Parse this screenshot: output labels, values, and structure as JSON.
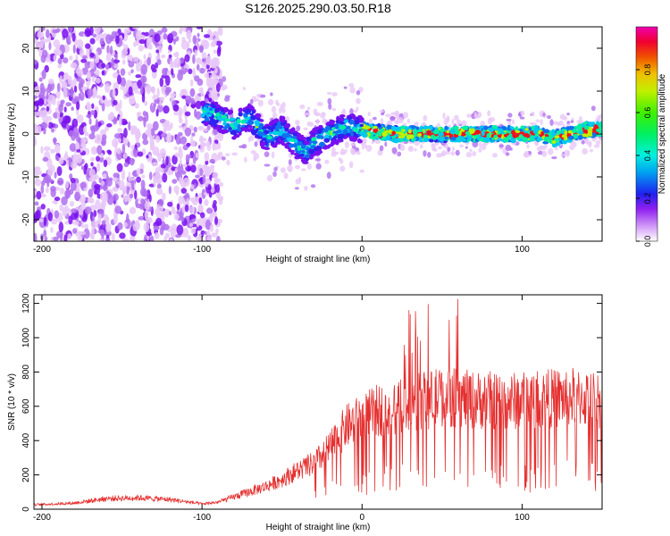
{
  "figure_title": "S126.2025.290.03.50.R18",
  "colors": {
    "snr_line": "#e53030",
    "colormap": [
      "#e8c8f8",
      "#b070f0",
      "#7a10f0",
      "#3020f0",
      "#1070f0",
      "#00c8f0",
      "#00f0a0",
      "#20f020",
      "#c0f000",
      "#f0c000",
      "#f06000",
      "#f01020",
      "#f000c0"
    ]
  },
  "chart_data": [
    {
      "type": "heatmap",
      "title": "",
      "xlabel": "Height of straight line (km)",
      "ylabel": "Frequency (Hz)",
      "xlim": [
        -205,
        150
      ],
      "ylim": [
        -25,
        25
      ],
      "xticks": [
        -200,
        -100,
        0,
        100
      ],
      "yticks": [
        -20,
        -10,
        0,
        10,
        20
      ],
      "colorbar": {
        "label": "Normalized spectral amplitude",
        "range": [
          0,
          1
        ],
        "ticks": [
          0.0,
          0.2,
          0.4,
          0.6,
          0.8
        ]
      },
      "ridge": {
        "description_points_x": [
          -95,
          -80,
          -70,
          -60,
          -50,
          -40,
          -35,
          -30,
          -20,
          -10,
          0,
          20,
          40,
          60,
          80,
          100,
          110,
          120,
          140,
          150
        ],
        "description_points_y": [
          5,
          2,
          4,
          -1,
          1,
          -3,
          -4,
          -2,
          0,
          2,
          1,
          0,
          0,
          0,
          0,
          0,
          0,
          -1,
          1,
          1
        ]
      }
    },
    {
      "type": "line",
      "title": "",
      "xlabel": "Height of straight line (km)",
      "ylabel": "SNR (10 * v/v)",
      "xlim": [
        -205,
        150
      ],
      "ylim": [
        0,
        1250
      ],
      "xticks": [
        -200,
        -100,
        0,
        100
      ],
      "yticks": [
        0,
        200,
        400,
        600,
        800,
        1000,
        1200
      ],
      "series": [
        {
          "name": "SNR",
          "envelope_x": [
            -205,
            -180,
            -160,
            -140,
            -120,
            -100,
            -90,
            -80,
            -70,
            -60,
            -50,
            -40,
            -30,
            -20,
            -10,
            0,
            10,
            20,
            30,
            40,
            50,
            60,
            70,
            80,
            90,
            100,
            110,
            120,
            130,
            140,
            150
          ],
          "envelope_y": [
            25,
            35,
            60,
            65,
            55,
            30,
            40,
            70,
            100,
            130,
            170,
            220,
            260,
            350,
            470,
            520,
            560,
            580,
            600,
            620,
            640,
            630,
            620,
            620,
            610,
            620,
            630,
            630,
            640,
            630,
            620
          ]
        }
      ]
    }
  ]
}
